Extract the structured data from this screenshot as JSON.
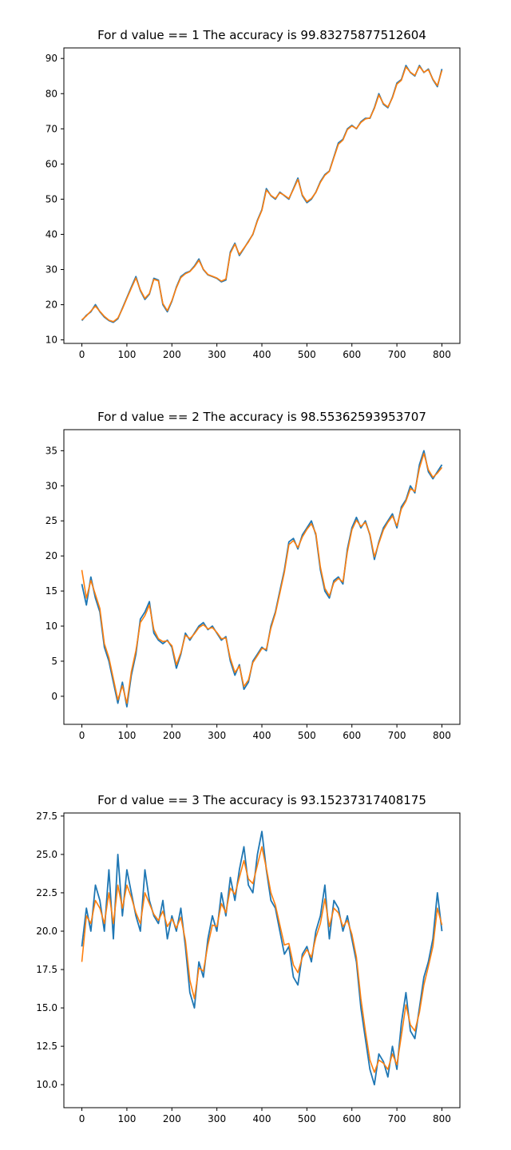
{
  "chart_data": [
    {
      "type": "line",
      "title": "For d value == 1  The accuracy is 99.83275877512604",
      "xlim": [
        -40,
        840
      ],
      "ylim": [
        9,
        93
      ],
      "xticks": [
        0,
        100,
        200,
        300,
        400,
        500,
        600,
        700,
        800
      ],
      "yticks": [
        10,
        20,
        30,
        40,
        50,
        60,
        70,
        80,
        90
      ],
      "grid": false,
      "series": [
        {
          "color": "#1f77b4",
          "x": [
            0,
            10,
            20,
            30,
            40,
            50,
            60,
            70,
            80,
            90,
            100,
            110,
            120,
            130,
            140,
            150,
            160,
            170,
            180,
            190,
            200,
            210,
            220,
            230,
            240,
            250,
            260,
            270,
            280,
            290,
            300,
            310,
            320,
            330,
            340,
            350,
            360,
            370,
            380,
            390,
            400,
            410,
            420,
            430,
            440,
            450,
            460,
            470,
            480,
            490,
            500,
            510,
            520,
            530,
            540,
            550,
            560,
            570,
            580,
            590,
            600,
            610,
            620,
            630,
            640,
            650,
            660,
            670,
            680,
            690,
            700,
            710,
            720,
            730,
            740,
            750,
            760,
            770,
            780,
            790,
            800
          ],
          "y": [
            15.5,
            17,
            18,
            20,
            18,
            16.5,
            15.5,
            15,
            16,
            19,
            22,
            25,
            28,
            24,
            21.5,
            23,
            27.5,
            27,
            20,
            18,
            21,
            25,
            28,
            29,
            29.5,
            31,
            33,
            30,
            28.5,
            28,
            27.5,
            26.5,
            27,
            35,
            37.5,
            34,
            36,
            38,
            40,
            44,
            47,
            53,
            51,
            50,
            52,
            51,
            50,
            53,
            56,
            51,
            49,
            50,
            52,
            55,
            57,
            58,
            62,
            66,
            67,
            70,
            71,
            70,
            72,
            73,
            73,
            76,
            80,
            77,
            76,
            79,
            83,
            84,
            88,
            86,
            85,
            88,
            86,
            87,
            84,
            82,
            87
          ]
        },
        {
          "color": "#ff7f0e",
          "x": [
            0,
            10,
            20,
            30,
            40,
            50,
            60,
            70,
            80,
            90,
            100,
            110,
            120,
            130,
            140,
            150,
            160,
            170,
            180,
            190,
            200,
            210,
            220,
            230,
            240,
            250,
            260,
            270,
            280,
            290,
            300,
            310,
            320,
            330,
            340,
            350,
            360,
            370,
            380,
            390,
            400,
            410,
            420,
            430,
            440,
            450,
            460,
            470,
            480,
            490,
            500,
            510,
            520,
            530,
            540,
            550,
            560,
            570,
            580,
            590,
            600,
            610,
            620,
            630,
            640,
            650,
            660,
            670,
            680,
            690,
            700,
            710,
            720,
            730,
            740,
            750,
            760,
            770,
            780,
            790,
            800
          ],
          "y": [
            15.7,
            16.8,
            18.2,
            19.6,
            18.1,
            16.7,
            15.6,
            15.2,
            16.2,
            18.8,
            21.8,
            24.7,
            27.6,
            24.2,
            21.8,
            23.2,
            27.2,
            26.8,
            20.3,
            18.3,
            21.2,
            24.8,
            27.7,
            28.8,
            29.4,
            30.8,
            32.6,
            30.1,
            28.6,
            28.1,
            27.6,
            26.7,
            27.3,
            34.6,
            37.2,
            34.3,
            36.1,
            37.8,
            40.1,
            43.8,
            46.8,
            52.6,
            51.1,
            50.2,
            51.8,
            51.1,
            50.2,
            52.8,
            55.6,
            51.2,
            49.3,
            50.2,
            51.9,
            54.8,
            56.8,
            57.9,
            61.8,
            65.6,
            66.8,
            69.8,
            70.8,
            70.1,
            71.8,
            72.8,
            73.1,
            75.8,
            79.6,
            77.2,
            76.2,
            78.8,
            82.7,
            83.8,
            87.6,
            86.1,
            85.2,
            87.7,
            86.1,
            86.8,
            84.1,
            82.3,
            86.6
          ]
        }
      ]
    },
    {
      "type": "line",
      "title": "For d value == 2  The accuracy is 98.55362593953707",
      "xlim": [
        -40,
        840
      ],
      "ylim": [
        -4,
        38
      ],
      "xticks": [
        0,
        100,
        200,
        300,
        400,
        500,
        600,
        700,
        800
      ],
      "yticks": [
        0,
        5,
        10,
        15,
        20,
        25,
        30,
        35
      ],
      "grid": false,
      "series": [
        {
          "color": "#1f77b4",
          "x": [
            0,
            10,
            20,
            30,
            40,
            50,
            60,
            70,
            80,
            90,
            100,
            110,
            120,
            130,
            140,
            150,
            160,
            170,
            180,
            190,
            200,
            210,
            220,
            230,
            240,
            250,
            260,
            270,
            280,
            290,
            300,
            310,
            320,
            330,
            340,
            350,
            360,
            370,
            380,
            390,
            400,
            410,
            420,
            430,
            440,
            450,
            460,
            470,
            480,
            490,
            500,
            510,
            520,
            530,
            540,
            550,
            560,
            570,
            580,
            590,
            600,
            610,
            620,
            630,
            640,
            650,
            660,
            670,
            680,
            690,
            700,
            710,
            720,
            730,
            740,
            750,
            760,
            770,
            780,
            790,
            800
          ],
          "y": [
            16,
            13,
            17,
            14,
            12,
            7,
            5,
            2,
            -1,
            2,
            -1.5,
            3,
            6,
            11,
            12,
            13.5,
            9,
            8,
            7.5,
            8,
            7,
            4,
            6,
            9,
            8,
            9,
            10,
            10.5,
            9.5,
            10,
            9,
            8,
            8.5,
            5,
            3,
            4.5,
            1,
            2,
            5,
            6,
            7,
            6.5,
            10,
            12,
            15,
            18,
            22,
            22.5,
            21,
            23,
            24,
            25,
            23,
            18,
            15,
            14,
            16.5,
            17,
            16,
            21,
            24,
            25.5,
            24,
            25,
            23,
            19.5,
            22,
            24,
            25,
            26,
            24,
            27,
            28,
            30,
            29,
            33,
            35,
            32,
            31,
            32,
            33
          ]
        },
        {
          "color": "#ff7f0e",
          "x": [
            0,
            10,
            20,
            30,
            40,
            50,
            60,
            70,
            80,
            90,
            100,
            110,
            120,
            130,
            140,
            150,
            160,
            170,
            180,
            190,
            200,
            210,
            220,
            230,
            240,
            250,
            260,
            270,
            280,
            290,
            300,
            310,
            320,
            330,
            340,
            350,
            360,
            370,
            380,
            390,
            400,
            410,
            420,
            430,
            440,
            450,
            460,
            470,
            480,
            490,
            500,
            510,
            520,
            530,
            540,
            550,
            560,
            570,
            580,
            590,
            600,
            610,
            620,
            630,
            640,
            650,
            660,
            670,
            680,
            690,
            700,
            710,
            720,
            730,
            740,
            750,
            760,
            770,
            780,
            790,
            800
          ],
          "y": [
            18,
            14,
            16.5,
            14.5,
            12.5,
            7.5,
            5.5,
            2.5,
            -0.5,
            1.5,
            -1,
            3.5,
            6.5,
            10.5,
            11.5,
            13,
            9.5,
            8.2,
            7.8,
            7.9,
            7.2,
            4.5,
            6.2,
            8.7,
            8.2,
            8.9,
            9.8,
            10.2,
            9.6,
            9.8,
            9.1,
            8.2,
            8.3,
            5.4,
            3.4,
            4.3,
            1.4,
            2.3,
            4.8,
            5.8,
            6.8,
            6.7,
            9.7,
            11.8,
            14.7,
            17.7,
            21.6,
            22.2,
            21.2,
            22.7,
            23.8,
            24.6,
            23.2,
            18.4,
            15.4,
            14.3,
            16.2,
            16.8,
            16.3,
            20.6,
            23.7,
            25.1,
            24.2,
            24.8,
            23.1,
            19.9,
            21.8,
            23.7,
            24.8,
            25.7,
            24.3,
            26.7,
            27.8,
            29.6,
            29.2,
            32.5,
            34.6,
            32.3,
            31.2,
            31.8,
            32.6
          ]
        }
      ]
    },
    {
      "type": "line",
      "title": "For d value == 3  The accuracy is 93.15237317408175",
      "xlim": [
        -40,
        840
      ],
      "ylim": [
        8.5,
        27.7
      ],
      "xticks": [
        0,
        100,
        200,
        300,
        400,
        500,
        600,
        700,
        800
      ],
      "yticks": [
        10.0,
        12.5,
        15.0,
        17.5,
        20.0,
        22.5,
        25.0,
        27.5
      ],
      "grid": false,
      "series": [
        {
          "color": "#1f77b4",
          "x": [
            0,
            10,
            20,
            30,
            40,
            50,
            60,
            70,
            80,
            90,
            100,
            110,
            120,
            130,
            140,
            150,
            160,
            170,
            180,
            190,
            200,
            210,
            220,
            230,
            240,
            250,
            260,
            270,
            280,
            290,
            300,
            310,
            320,
            330,
            340,
            350,
            360,
            370,
            380,
            390,
            400,
            410,
            420,
            430,
            440,
            450,
            460,
            470,
            480,
            490,
            500,
            510,
            520,
            530,
            540,
            550,
            560,
            570,
            580,
            590,
            600,
            610,
            620,
            630,
            640,
            650,
            660,
            670,
            680,
            690,
            700,
            710,
            720,
            730,
            740,
            750,
            760,
            770,
            780,
            790,
            800
          ],
          "y": [
            19,
            21.5,
            20,
            23,
            22,
            20,
            24,
            19.5,
            25,
            21,
            24,
            22.5,
            21,
            20,
            24,
            22,
            21,
            20.5,
            22,
            19.5,
            21,
            20,
            21.5,
            19,
            16,
            15,
            18,
            17,
            19.5,
            21,
            20,
            22.5,
            21,
            23.5,
            22,
            24,
            25.5,
            23,
            22.5,
            25,
            26.5,
            24,
            22,
            21.5,
            20,
            18.5,
            19,
            17,
            16.5,
            18.5,
            19,
            18,
            20,
            21,
            23,
            19.5,
            22,
            21.5,
            20,
            21,
            19.5,
            18,
            15,
            13,
            11,
            10,
            12,
            11.5,
            10.5,
            12.5,
            11,
            14,
            16,
            13.5,
            13,
            15,
            17,
            18,
            19.5,
            22.5,
            20
          ]
        },
        {
          "color": "#ff7f0e",
          "x": [
            0,
            10,
            20,
            30,
            40,
            50,
            60,
            70,
            80,
            90,
            100,
            110,
            120,
            130,
            140,
            150,
            160,
            170,
            180,
            190,
            200,
            210,
            220,
            230,
            240,
            250,
            260,
            270,
            280,
            290,
            300,
            310,
            320,
            330,
            340,
            350,
            360,
            370,
            380,
            390,
            400,
            410,
            420,
            430,
            440,
            450,
            460,
            470,
            480,
            490,
            500,
            510,
            520,
            530,
            540,
            550,
            560,
            570,
            580,
            590,
            600,
            610,
            620,
            630,
            640,
            650,
            660,
            670,
            680,
            690,
            700,
            710,
            720,
            730,
            740,
            750,
            760,
            770,
            780,
            790,
            800
          ],
          "y": [
            18,
            21,
            20.5,
            22,
            21.5,
            20.5,
            22.5,
            20.5,
            23,
            21.5,
            23,
            22.2,
            21.2,
            20.5,
            22.5,
            21.8,
            21.1,
            20.7,
            21.3,
            20.3,
            20.8,
            20.2,
            20.9,
            19.4,
            16.8,
            15.6,
            17.6,
            17.4,
            19.1,
            20.4,
            20.3,
            21.8,
            21.2,
            22.8,
            22.4,
            23.5,
            24.6,
            23.4,
            23.1,
            24.3,
            25.5,
            24.1,
            22.5,
            21.7,
            20.4,
            19.1,
            19.2,
            17.8,
            17.3,
            18.3,
            18.8,
            18.3,
            19.6,
            20.5,
            22.1,
            20.3,
            21.5,
            21.2,
            20.3,
            20.7,
            19.8,
            18.3,
            15.6,
            13.5,
            11.6,
            10.8,
            11.6,
            11.4,
            11,
            12,
            11.3,
            13.2,
            15.2,
            13.9,
            13.5,
            14.7,
            16.5,
            17.7,
            19,
            21.5,
            20.4
          ]
        }
      ]
    }
  ]
}
